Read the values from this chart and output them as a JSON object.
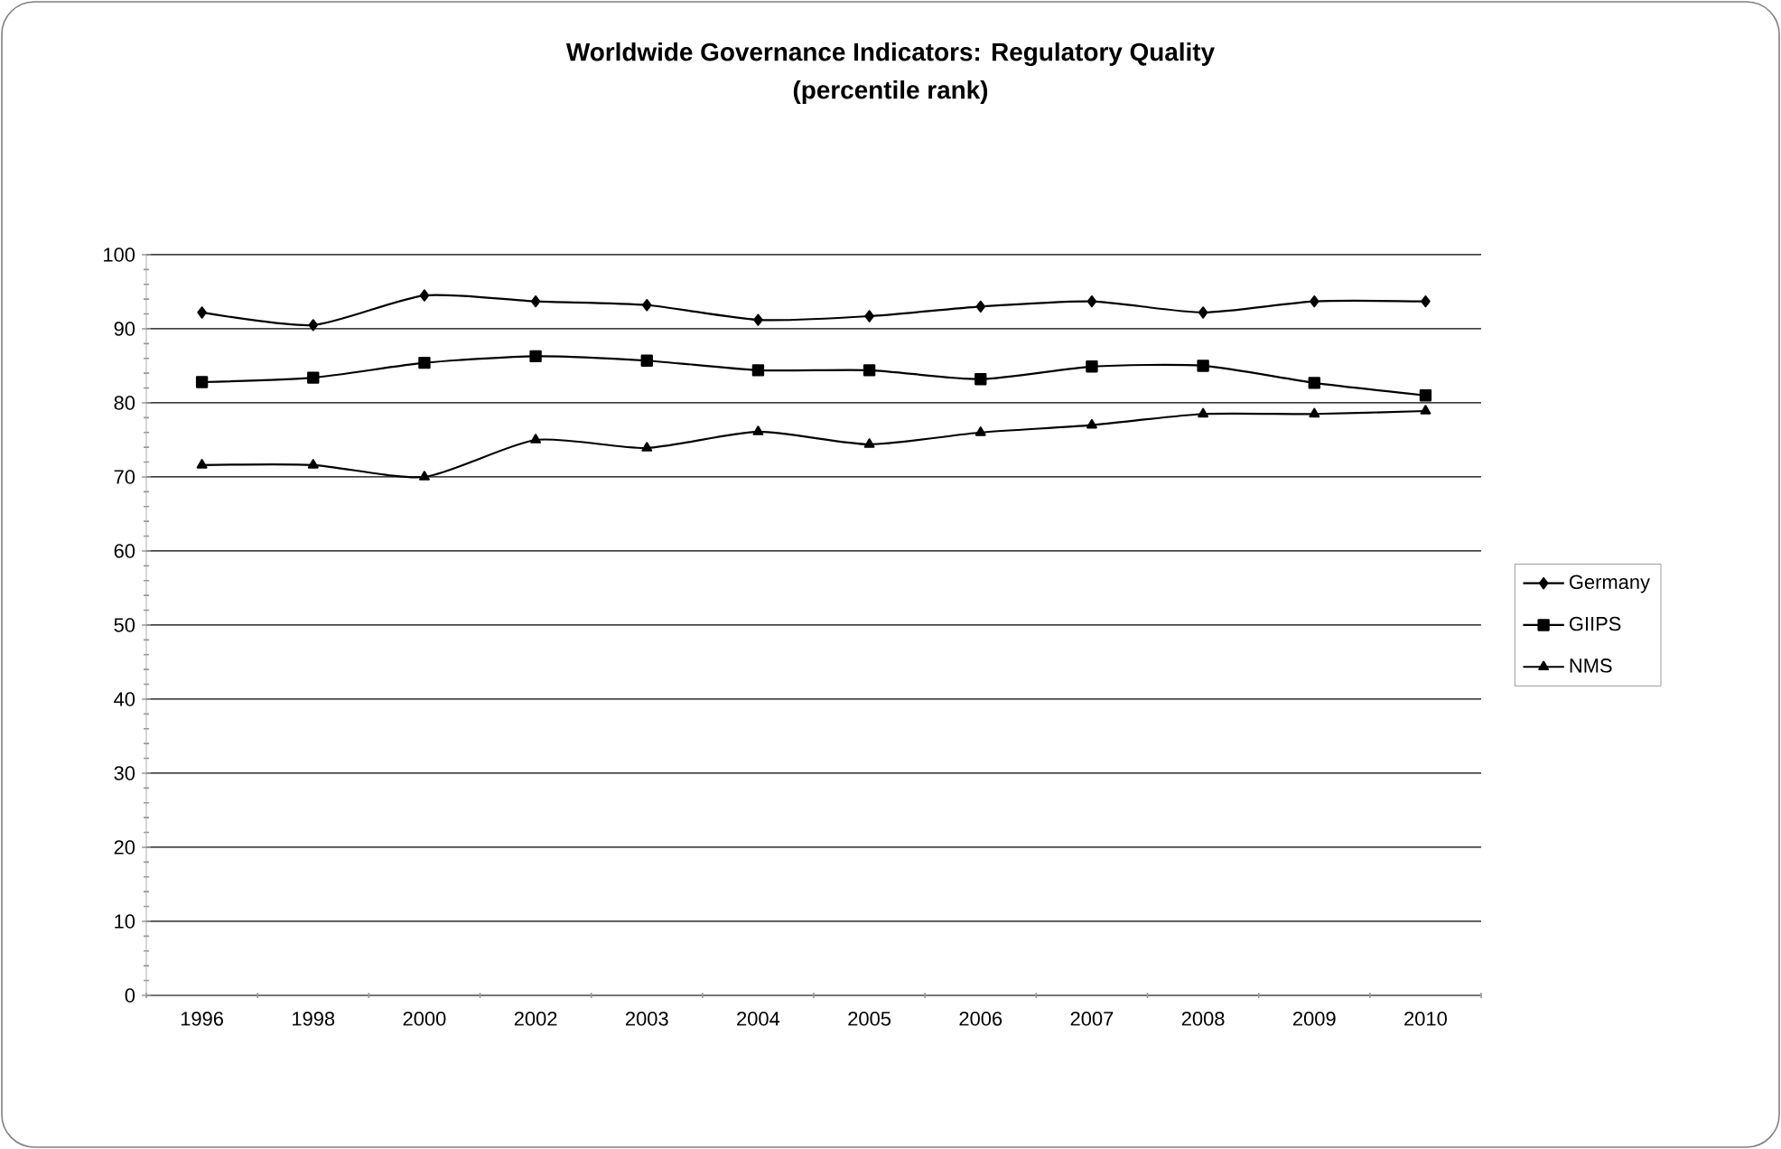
{
  "chart_data": {
    "type": "line",
    "title": "Worldwide Governance Indicators: Regulatory Quality",
    "subtitle": "(percentile rank)",
    "categories": [
      "1996",
      "1998",
      "2000",
      "2002",
      "2003",
      "2004",
      "2005",
      "2006",
      "2007",
      "2008",
      "2009",
      "2010"
    ],
    "series": [
      {
        "name": "Germany",
        "color": "#000000",
        "marker": "diamond",
        "values": [
          92.2,
          90.5,
          94.5,
          93.7,
          93.2,
          91.2,
          91.7,
          93.0,
          93.7,
          92.2,
          93.7,
          93.7
        ]
      },
      {
        "name": "GIIPS",
        "color": "#000000",
        "marker": "square",
        "values": [
          82.8,
          83.4,
          85.4,
          86.3,
          85.7,
          84.4,
          84.4,
          83.2,
          84.9,
          85.0,
          82.7,
          81.0
        ]
      },
      {
        "name": "NMS",
        "color": "#000000",
        "marker": "triangle",
        "values": [
          71.6,
          71.6,
          70.0,
          75.0,
          73.9,
          76.1,
          74.4,
          76.0,
          77.0,
          78.5,
          78.5,
          78.9
        ]
      }
    ],
    "ylim": [
      0,
      100
    ],
    "yticks": [
      0,
      10,
      20,
      30,
      40,
      50,
      60,
      70,
      80,
      90,
      100
    ],
    "grid": "y",
    "legend": "right",
    "line_style": "solid"
  }
}
